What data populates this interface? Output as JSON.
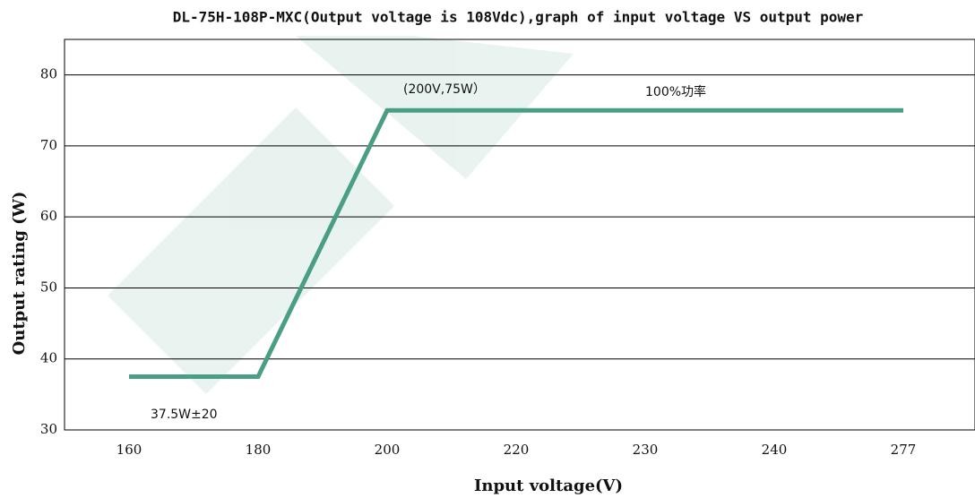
{
  "chart_data": {
    "type": "line",
    "title": "DL-75H-108P-MXC(Output voltage is 108Vdc),graph of input voltage VS output power",
    "x_label": "Input voltage(V)",
    "y_label": "Output rating (W)",
    "categories": [
      "160",
      "180",
      "200",
      "220",
      "230",
      "240",
      "277"
    ],
    "series": [
      {
        "name": "Output power",
        "color": "#4a9e85",
        "values": [
          37.5,
          37.5,
          75,
          75,
          75,
          75,
          75
        ]
      }
    ],
    "ylim": [
      30,
      85
    ],
    "yticks": [
      30,
      40,
      50,
      60,
      70,
      80
    ],
    "grid": true,
    "legend": false,
    "annotations": [
      "(200V,75W）",
      "100%功率",
      "37.5W±20"
    ]
  }
}
